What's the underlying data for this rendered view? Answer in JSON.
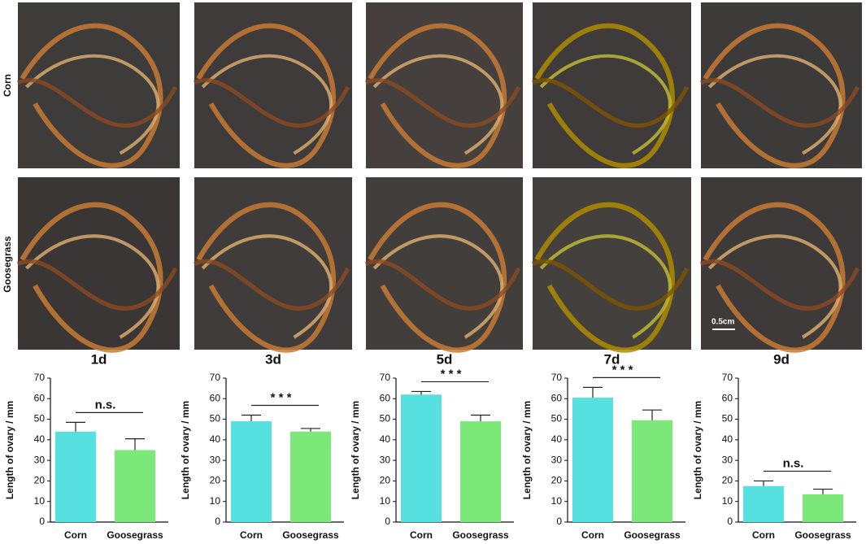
{
  "figure": {
    "row_labels": [
      "Corn",
      "Goosegrass"
    ],
    "day_labels": [
      "1d",
      "3d",
      "5d",
      "7d",
      "9d"
    ],
    "scale_bar": "0.5cm"
  },
  "chart_data": [
    {
      "type": "bar",
      "ylabel": "Length of ovary / mm",
      "categories": [
        "Corn",
        "Goosegrass"
      ],
      "values": [
        44,
        35
      ],
      "errors": [
        4.5,
        5.5
      ],
      "colors": [
        "#56e0e0",
        "#7de87a"
      ],
      "ylim": [
        0,
        70
      ],
      "yticks": [
        0,
        10,
        20,
        30,
        40,
        50,
        60,
        70
      ],
      "annotation": "n.s."
    },
    {
      "type": "bar",
      "ylabel": "Length of ovary / mm",
      "categories": [
        "Corn",
        "Goosegrass"
      ],
      "values": [
        49,
        44
      ],
      "errors": [
        3,
        1.5
      ],
      "colors": [
        "#56e0e0",
        "#7de87a"
      ],
      "ylim": [
        0,
        70
      ],
      "yticks": [
        0,
        10,
        20,
        30,
        40,
        50,
        60,
        70
      ],
      "annotation": "* * *"
    },
    {
      "type": "bar",
      "ylabel": "Length of ovary / mm",
      "categories": [
        "Corn",
        "Goosegrass"
      ],
      "values": [
        62,
        49
      ],
      "errors": [
        1.5,
        3
      ],
      "colors": [
        "#56e0e0",
        "#7de87a"
      ],
      "ylim": [
        0,
        70
      ],
      "yticks": [
        0,
        10,
        20,
        30,
        40,
        50,
        60,
        70
      ],
      "annotation": "* * *"
    },
    {
      "type": "bar",
      "ylabel": "Length of ovary / mm",
      "categories": [
        "Corn",
        "Goosegrass"
      ],
      "values": [
        60.5,
        49.5
      ],
      "errors": [
        5,
        5
      ],
      "colors": [
        "#56e0e0",
        "#7de87a"
      ],
      "ylim": [
        0,
        70
      ],
      "yticks": [
        0,
        10,
        20,
        30,
        40,
        50,
        60,
        70
      ],
      "annotation": "* * *"
    },
    {
      "type": "bar",
      "ylabel": "Length of ovary / mm",
      "categories": [
        "Corn",
        "Goosegrass"
      ],
      "values": [
        17.5,
        13.5
      ],
      "errors": [
        2.5,
        2.5
      ],
      "colors": [
        "#56e0e0",
        "#7de87a"
      ],
      "ylim": [
        0,
        70
      ],
      "yticks": [
        0,
        10,
        20,
        30,
        40,
        50,
        60,
        70
      ],
      "annotation": "n.s."
    }
  ]
}
